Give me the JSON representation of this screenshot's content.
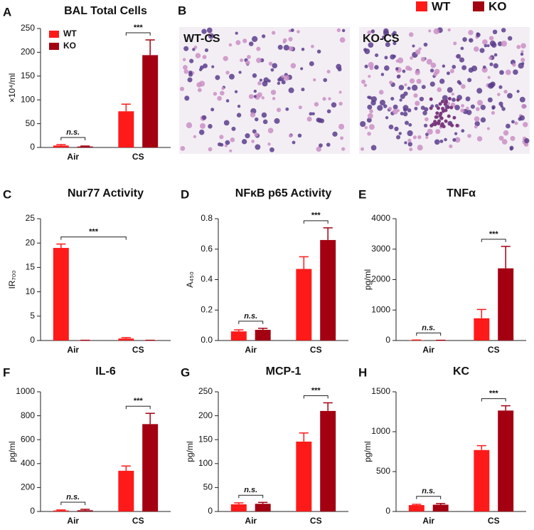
{
  "legend": [
    {
      "name": "WT",
      "color": "#ff1a1a"
    },
    {
      "name": "KO",
      "color": "#a30012"
    }
  ],
  "micrographs": {
    "panel": "B",
    "labels": [
      "WT-CS",
      "KO-CS"
    ]
  },
  "chart_data": [
    {
      "type": "bar",
      "panel": "A",
      "title": "BAL Total Cells",
      "ylabel": "×10⁴/ml",
      "categories": [
        "Air",
        "CS"
      ],
      "series": [
        {
          "name": "WT",
          "color": "#ff1a1a",
          "values": [
            4,
            76
          ],
          "errors": [
            2,
            15
          ]
        },
        {
          "name": "KO",
          "color": "#a30012",
          "values": [
            2,
            194
          ],
          "errors": [
            1,
            32
          ]
        }
      ],
      "ylim": [
        0,
        250
      ],
      "yticks": [
        0,
        50,
        100,
        150,
        200,
        250
      ],
      "legend": "upper left",
      "annotations": [
        {
          "text": "n.s.",
          "category": "Air"
        },
        {
          "text": "***",
          "category": "CS"
        }
      ]
    },
    {
      "type": "bar",
      "panel": "C",
      "title": "Nur77 Activity",
      "ylabel": "IR₇₀₀",
      "categories": [
        "Air",
        "CS"
      ],
      "series": [
        {
          "color": "#ff1a1a",
          "values": [
            19,
            0.4
          ],
          "errors": [
            0.8,
            0.2
          ]
        },
        {
          "color": "#a30012",
          "values": [
            0.05,
            0.05
          ],
          "errors": [
            0,
            0
          ]
        }
      ],
      "ylim": [
        0,
        25
      ],
      "yticks": [
        0,
        5,
        10,
        15,
        20,
        25
      ],
      "annotations": [
        {
          "text": "***",
          "series": 0
        }
      ]
    },
    {
      "type": "bar",
      "panel": "D",
      "title": "NFκB p65 Activity",
      "ylabel": "A₄₅₀",
      "categories": [
        "Air",
        "CS"
      ],
      "series": [
        {
          "color": "#ff1a1a",
          "values": [
            0.06,
            0.47
          ],
          "errors": [
            0.01,
            0.08
          ]
        },
        {
          "color": "#a30012",
          "values": [
            0.07,
            0.66
          ],
          "errors": [
            0.01,
            0.08
          ]
        }
      ],
      "ylim": [
        0,
        0.8
      ],
      "yticks": [
        {
          "value": 0,
          "label": "0.0"
        },
        0.2,
        0.4,
        0.6,
        0.8
      ],
      "annotations": [
        {
          "text": "n.s.",
          "category": "Air"
        },
        {
          "text": "***",
          "category": "CS"
        }
      ]
    },
    {
      "type": "bar",
      "panel": "E",
      "title": "TNFα",
      "ylabel": "pg/ml",
      "categories": [
        "Air",
        "CS"
      ],
      "series": [
        {
          "color": "#ff1a1a",
          "values": [
            10,
            730
          ],
          "errors": [
            5,
            290
          ]
        },
        {
          "color": "#a30012",
          "values": [
            5,
            2370
          ],
          "errors": [
            3,
            720
          ]
        }
      ],
      "ylim": [
        0,
        4000
      ],
      "yticks": [
        0,
        1000,
        2000,
        3000,
        4000
      ],
      "annotations": [
        {
          "text": "n.s.",
          "category": "Air"
        },
        {
          "text": "***",
          "category": "CS"
        }
      ]
    },
    {
      "type": "bar",
      "panel": "F",
      "title": "IL-6",
      "ylabel": "pg/ml",
      "categories": [
        "Air",
        "CS"
      ],
      "series": [
        {
          "color": "#ff1a1a",
          "values": [
            8,
            340
          ],
          "errors": [
            5,
            40
          ]
        },
        {
          "color": "#a30012",
          "values": [
            10,
            730
          ],
          "errors": [
            8,
            90
          ]
        }
      ],
      "ylim": [
        0,
        1000
      ],
      "yticks": [
        0,
        200,
        400,
        600,
        800,
        1000
      ],
      "annotations": [
        {
          "text": "n.s.",
          "category": "Air"
        },
        {
          "text": "***",
          "category": "CS"
        }
      ]
    },
    {
      "type": "bar",
      "panel": "G",
      "title": "MCP-1",
      "ylabel": "pg/ml",
      "categories": [
        "Air",
        "CS"
      ],
      "series": [
        {
          "color": "#ff1a1a",
          "values": [
            15,
            146
          ],
          "errors": [
            3,
            18
          ]
        },
        {
          "color": "#a30012",
          "values": [
            16,
            210
          ],
          "errors": [
            3,
            17
          ]
        }
      ],
      "ylim": [
        0,
        250
      ],
      "yticks": [
        0,
        50,
        100,
        150,
        200,
        250
      ],
      "annotations": [
        {
          "text": "n.s.",
          "category": "Air"
        },
        {
          "text": "***",
          "category": "CS"
        }
      ]
    },
    {
      "type": "bar",
      "panel": "H",
      "title": "KC",
      "ylabel": "pg/ml",
      "categories": [
        "Air",
        "CS"
      ],
      "series": [
        {
          "color": "#ff1a1a",
          "values": [
            80,
            770
          ],
          "errors": [
            10,
            55
          ]
        },
        {
          "color": "#a30012",
          "values": [
            85,
            1265
          ],
          "errors": [
            15,
            60
          ]
        }
      ],
      "ylim": [
        0,
        1500
      ],
      "yticks": [
        0,
        500,
        1000,
        1500
      ],
      "annotations": [
        {
          "text": "n.s.",
          "category": "Air"
        },
        {
          "text": "***",
          "category": "CS"
        }
      ]
    }
  ]
}
